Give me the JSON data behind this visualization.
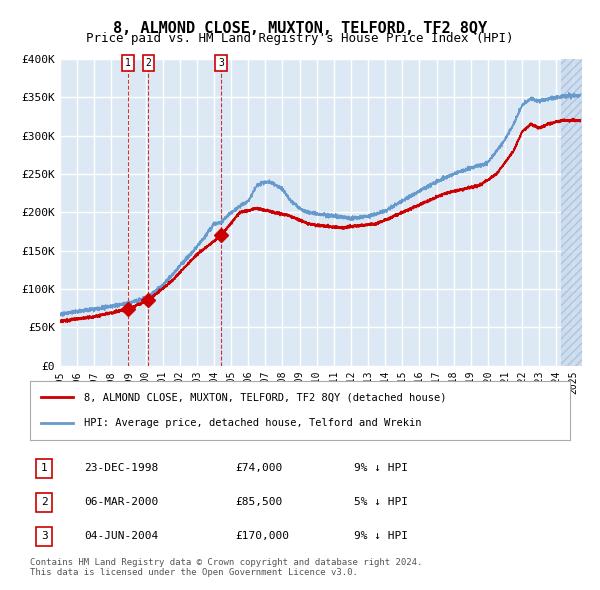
{
  "title": "8, ALMOND CLOSE, MUXTON, TELFORD, TF2 8QY",
  "subtitle": "Price paid vs. HM Land Registry's House Price Index (HPI)",
  "ylabel_ticks": [
    "£0",
    "£50K",
    "£100K",
    "£150K",
    "£200K",
    "£250K",
    "£300K",
    "£350K",
    "£400K"
  ],
  "ytick_values": [
    0,
    50000,
    100000,
    150000,
    200000,
    250000,
    300000,
    350000,
    400000
  ],
  "ylim": [
    0,
    400000
  ],
  "xlim_start": 1995.0,
  "xlim_end": 2025.5,
  "background_color": "#dce9f5",
  "plot_bg_color": "#dce9f5",
  "grid_color": "#ffffff",
  "hatch_color": "#c0d0e8",
  "sale_marker_color": "#cc0000",
  "red_line_color": "#cc0000",
  "blue_line_color": "#6699cc",
  "vline_color": "#cc0000",
  "legend_label_red": "8, ALMOND CLOSE, MUXTON, TELFORD, TF2 8QY (detached house)",
  "legend_label_blue": "HPI: Average price, detached house, Telford and Wrekin",
  "table_entries": [
    {
      "num": 1,
      "date": "23-DEC-1998",
      "price": "£74,000",
      "hpi": "9% ↓ HPI"
    },
    {
      "num": 2,
      "date": "06-MAR-2000",
      "price": "£85,500",
      "hpi": "5% ↓ HPI"
    },
    {
      "num": 3,
      "date": "04-JUN-2004",
      "price": "£170,000",
      "hpi": "9% ↓ HPI"
    }
  ],
  "sale_dates": [
    1998.97,
    2000.17,
    2004.42
  ],
  "sale_prices": [
    74000,
    85500,
    170000
  ],
  "footer": "Contains HM Land Registry data © Crown copyright and database right 2024.\nThis data is licensed under the Open Government Licence v3.0.",
  "xtick_years": [
    1995,
    1996,
    1997,
    1998,
    1999,
    2000,
    2001,
    2002,
    2003,
    2004,
    2005,
    2006,
    2007,
    2008,
    2009,
    2010,
    2011,
    2012,
    2013,
    2014,
    2015,
    2016,
    2017,
    2018,
    2019,
    2020,
    2021,
    2022,
    2023,
    2024,
    2025
  ]
}
